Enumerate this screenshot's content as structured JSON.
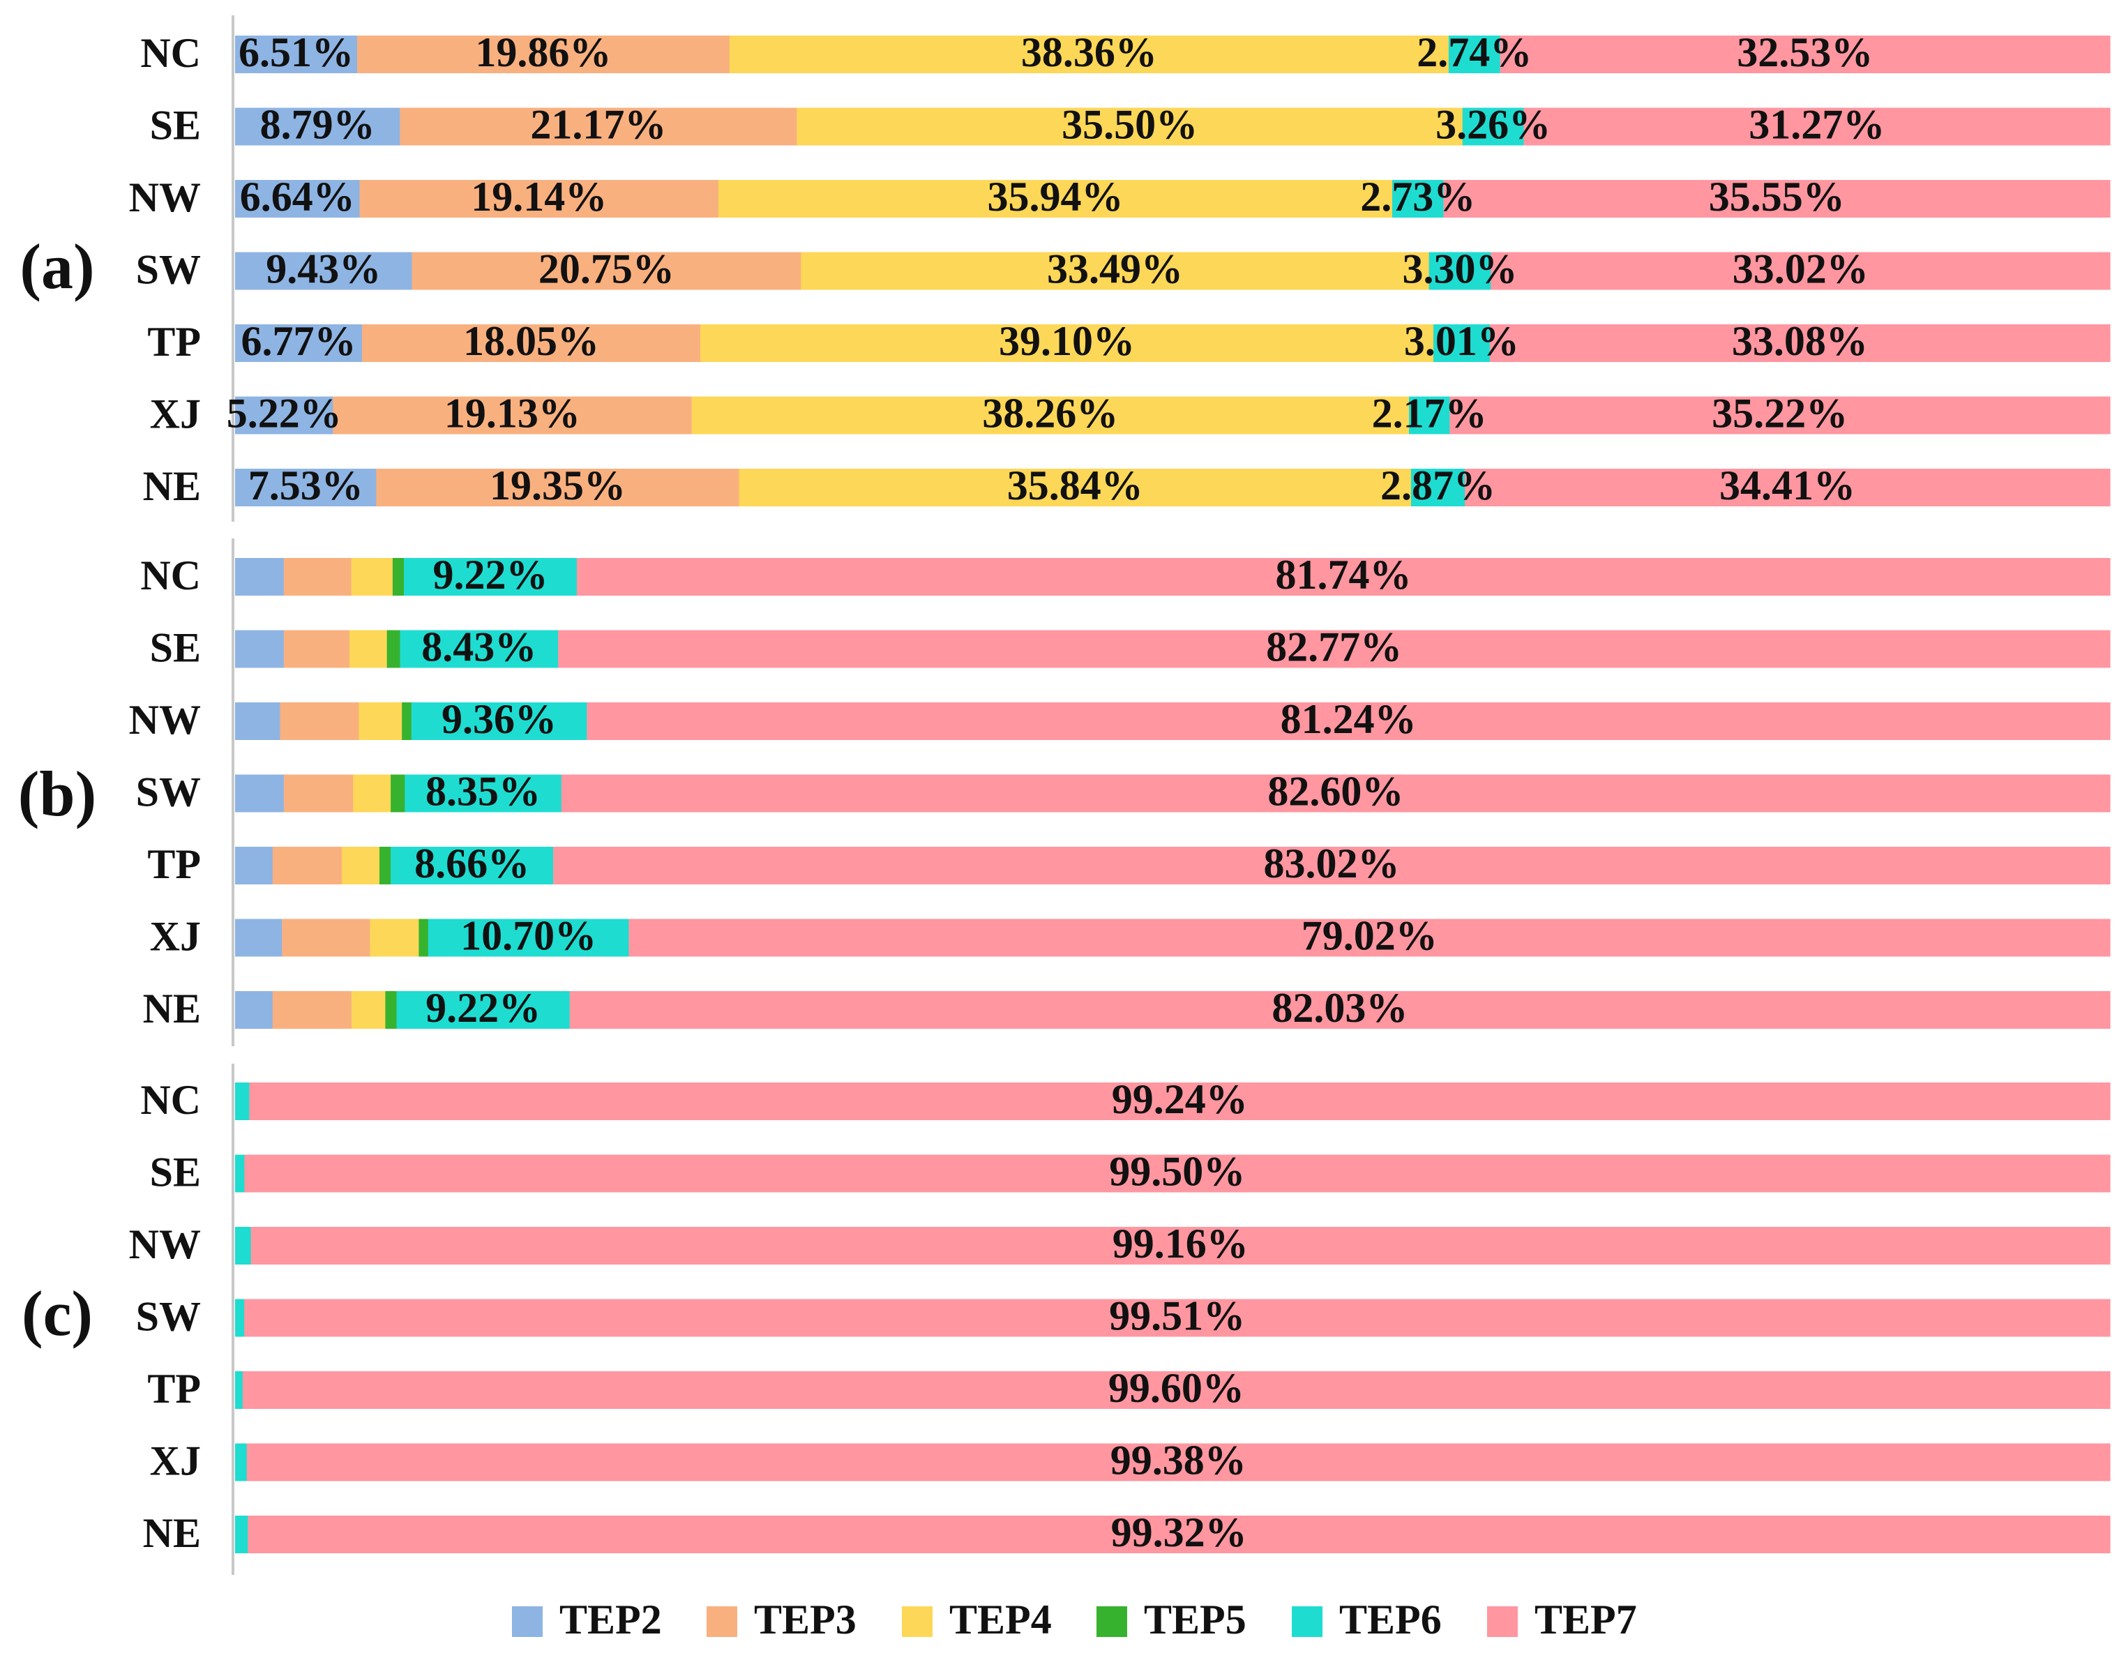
{
  "chart_data": {
    "type": "bar",
    "orientation": "horizontal",
    "stacked": true,
    "normalized": true,
    "legend_position": "bottom",
    "series": [
      {
        "name": "TEP2",
        "color": "#8eb4e3"
      },
      {
        "name": "TEP3",
        "color": "#f9b07f"
      },
      {
        "name": "TEP4",
        "color": "#fdd757"
      },
      {
        "name": "TEP5",
        "color": "#37b22e"
      },
      {
        "name": "TEP6",
        "color": "#1fdcd1"
      },
      {
        "name": "TEP7",
        "color": "#ff96a0"
      }
    ],
    "panels": [
      {
        "label": "(a)",
        "categories": [
          "NC",
          "SE",
          "NW",
          "SW",
          "TP",
          "XJ",
          "NE"
        ],
        "values": [
          [
            6.51,
            19.86,
            38.36,
            0.0,
            2.74,
            32.53
          ],
          [
            8.79,
            21.17,
            35.5,
            0.0,
            3.26,
            31.27
          ],
          [
            6.64,
            19.14,
            35.94,
            0.0,
            2.73,
            35.55
          ],
          [
            9.43,
            20.75,
            33.49,
            0.0,
            3.3,
            33.02
          ],
          [
            6.77,
            18.05,
            39.1,
            0.0,
            3.01,
            33.08
          ],
          [
            5.22,
            19.13,
            38.26,
            0.0,
            2.17,
            35.22
          ],
          [
            7.53,
            19.35,
            35.84,
            0.0,
            2.87,
            34.41
          ]
        ],
        "labels": [
          [
            "6.51%",
            "19.86%",
            "38.36%",
            "",
            "2.74%",
            "32.53%"
          ],
          [
            "8.79%",
            "21.17%",
            "35.50%",
            "",
            "3.26%",
            "31.27%"
          ],
          [
            "6.64%",
            "19.14%",
            "35.94%",
            "",
            "2.73%",
            "35.55%"
          ],
          [
            "9.43%",
            "20.75%",
            "33.49%",
            "",
            "3.30%",
            "33.02%"
          ],
          [
            "6.77%",
            "18.05%",
            "39.10%",
            "",
            "3.01%",
            "33.08%"
          ],
          [
            "5.22%",
            "19.13%",
            "38.26%",
            "",
            "2.17%",
            "35.22%"
          ],
          [
            "7.53%",
            "19.35%",
            "35.84%",
            "",
            "2.87%",
            "34.41%"
          ]
        ]
      },
      {
        "label": "(b)",
        "categories": [
          "NC",
          "SE",
          "NW",
          "SW",
          "TP",
          "XJ",
          "NE"
        ],
        "values": [
          [
            2.6,
            3.6,
            2.2,
            0.6,
            9.22,
            81.74
          ],
          [
            2.6,
            3.5,
            2.0,
            0.7,
            8.43,
            82.77
          ],
          [
            2.4,
            4.2,
            2.3,
            0.5,
            9.36,
            81.24
          ],
          [
            2.6,
            3.7,
            2.0,
            0.75,
            8.35,
            82.6
          ],
          [
            2.0,
            3.7,
            2.0,
            0.6,
            8.66,
            83.02
          ],
          [
            2.5,
            4.7,
            2.6,
            0.5,
            10.7,
            79.02
          ],
          [
            2.0,
            4.2,
            1.8,
            0.6,
            9.22,
            82.03
          ]
        ],
        "labels": [
          [
            "",
            "",
            "",
            "",
            "9.22%",
            "81.74%"
          ],
          [
            "",
            "",
            "",
            "",
            "8.43%",
            "82.77%"
          ],
          [
            "",
            "",
            "",
            "",
            "9.36%",
            "81.24%"
          ],
          [
            "",
            "",
            "",
            "",
            "8.35%",
            "82.60%"
          ],
          [
            "",
            "",
            "",
            "",
            "8.66%",
            "83.02%"
          ],
          [
            "",
            "",
            "",
            "",
            "10.70%",
            "79.02%"
          ],
          [
            "",
            "",
            "",
            "",
            "9.22%",
            "82.03%"
          ]
        ]
      },
      {
        "label": "(c)",
        "categories": [
          "NC",
          "SE",
          "NW",
          "SW",
          "TP",
          "XJ",
          "NE"
        ],
        "values": [
          [
            0.0,
            0.0,
            0.0,
            0.0,
            0.76,
            99.24
          ],
          [
            0.0,
            0.0,
            0.0,
            0.0,
            0.5,
            99.5
          ],
          [
            0.0,
            0.0,
            0.0,
            0.0,
            0.84,
            99.16
          ],
          [
            0.0,
            0.0,
            0.0,
            0.0,
            0.49,
            99.51
          ],
          [
            0.0,
            0.0,
            0.0,
            0.0,
            0.4,
            99.6
          ],
          [
            0.0,
            0.0,
            0.0,
            0.0,
            0.62,
            99.38
          ],
          [
            0.0,
            0.0,
            0.0,
            0.0,
            0.68,
            99.32
          ]
        ],
        "labels": [
          [
            "",
            "",
            "",
            "",
            "",
            "99.24%"
          ],
          [
            "",
            "",
            "",
            "",
            "",
            "99.50%"
          ],
          [
            "",
            "",
            "",
            "",
            "",
            "99.16%"
          ],
          [
            "",
            "",
            "",
            "",
            "",
            "99.51%"
          ],
          [
            "",
            "",
            "",
            "",
            "",
            "99.60%"
          ],
          [
            "",
            "",
            "",
            "",
            "",
            "99.38%"
          ],
          [
            "",
            "",
            "",
            "",
            "",
            "99.32%"
          ]
        ]
      }
    ]
  }
}
